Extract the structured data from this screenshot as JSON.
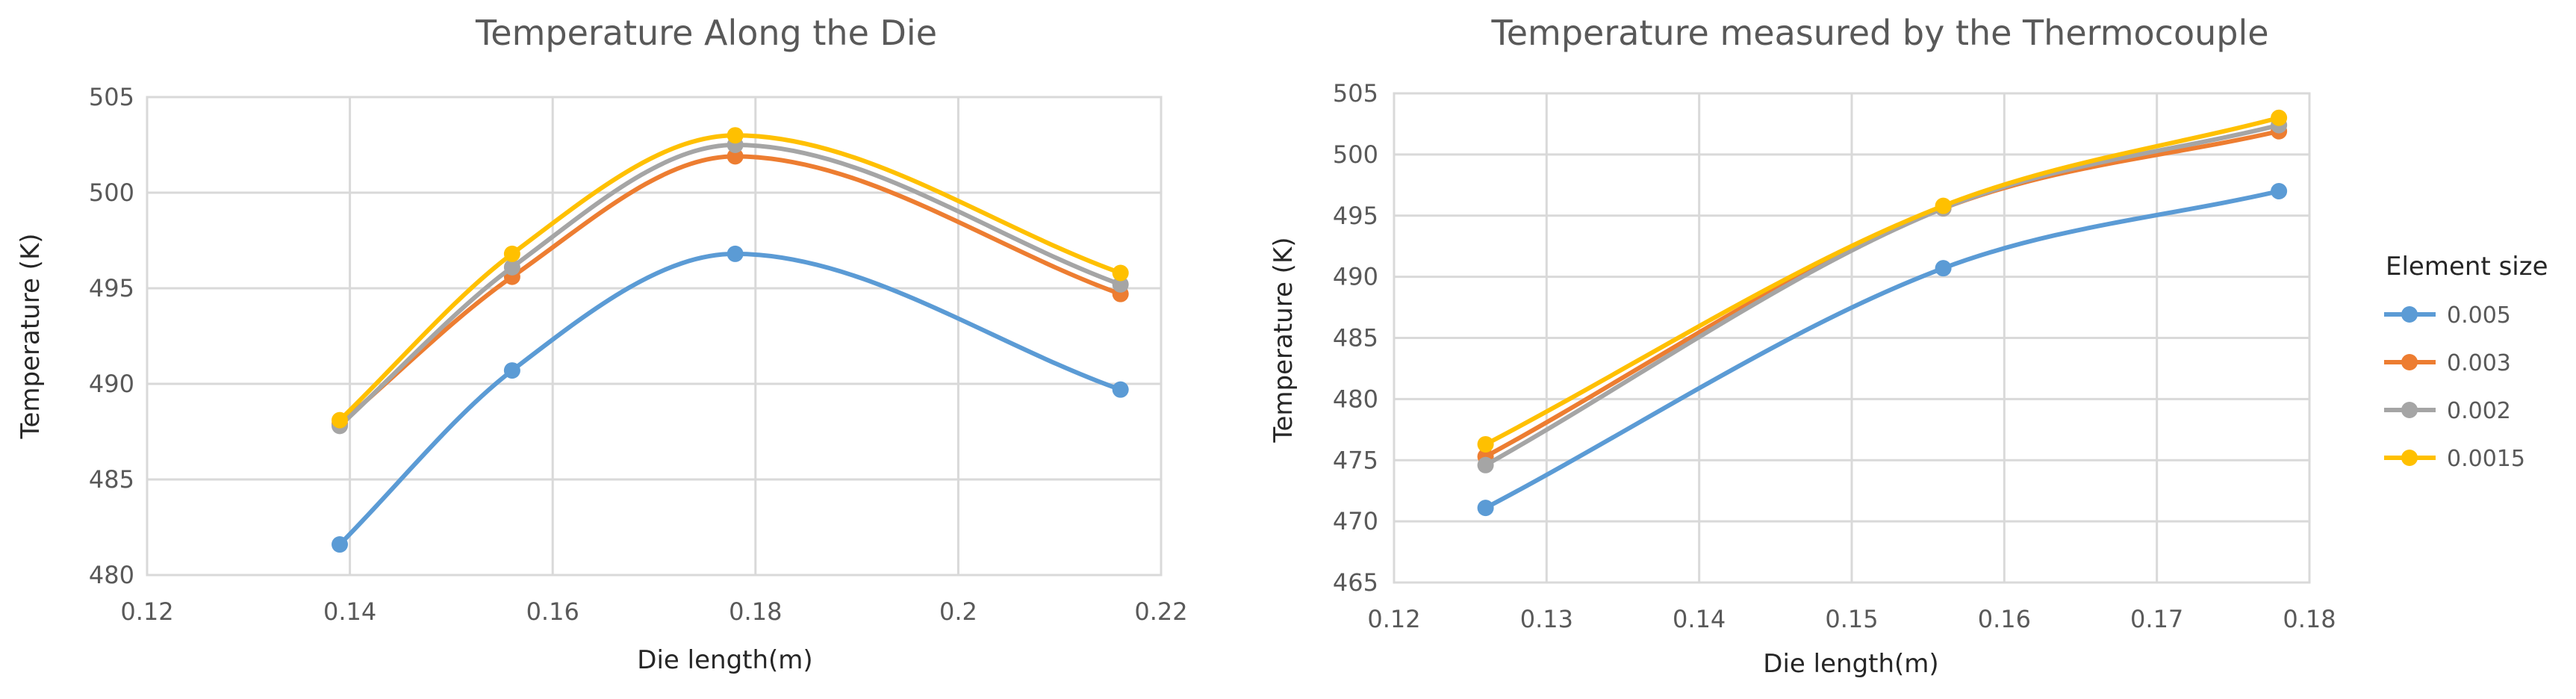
{
  "chart_data": [
    {
      "type": "line",
      "title": "Temperature  Along the Die",
      "xlabel": "Die length(m)",
      "ylabel": "Temperature (K)",
      "xlim": [
        0.12,
        0.22
      ],
      "ylim": [
        480,
        505
      ],
      "xticks": [
        0.12,
        0.14,
        0.16,
        0.18,
        0.2,
        0.22
      ],
      "xtick_labels": [
        "0.12",
        "0.14",
        "0.16",
        "0.18",
        "0.2",
        "0.22"
      ],
      "yticks": [
        480,
        485,
        490,
        495,
        500,
        505
      ],
      "ytick_labels": [
        "480",
        "485",
        "490",
        "495",
        "500",
        "505"
      ],
      "grid": true,
      "x": [
        0.139,
        0.156,
        0.178,
        0.216
      ],
      "series": [
        {
          "name": "0.005",
          "values": [
            481.6,
            490.7,
            496.8,
            489.7
          ]
        },
        {
          "name": "0.003",
          "values": [
            487.9,
            495.6,
            501.9,
            494.7
          ]
        },
        {
          "name": "0.002",
          "values": [
            487.8,
            496.1,
            502.5,
            495.2
          ]
        },
        {
          "name": "0.0015",
          "values": [
            488.1,
            496.8,
            503.0,
            495.8
          ]
        }
      ]
    },
    {
      "type": "line",
      "title": "Temperature  measured by the Thermocouple",
      "xlabel": "Die length(m)",
      "ylabel": "Temperature (K)",
      "xlim": [
        0.12,
        0.18
      ],
      "ylim": [
        465,
        505
      ],
      "xticks": [
        0.12,
        0.13,
        0.14,
        0.15,
        0.16,
        0.17,
        0.18
      ],
      "xtick_labels": [
        "0.12",
        "0.13",
        "0.14",
        "0.15",
        "0.16",
        "0.17",
        "0.18"
      ],
      "yticks": [
        465,
        470,
        475,
        480,
        485,
        490,
        495,
        500,
        505
      ],
      "ytick_labels": [
        "465",
        "470",
        "475",
        "480",
        "485",
        "490",
        "495",
        "500",
        "505"
      ],
      "grid": true,
      "x": [
        0.126,
        0.156,
        0.178
      ],
      "series": [
        {
          "name": "0.005",
          "values": [
            471.1,
            490.7,
            497.0
          ]
        },
        {
          "name": "0.003",
          "values": [
            475.3,
            495.6,
            501.9
          ]
        },
        {
          "name": "0.002",
          "values": [
            474.6,
            495.6,
            502.4
          ]
        },
        {
          "name": "0.0015",
          "values": [
            476.3,
            495.8,
            503.0
          ]
        }
      ]
    }
  ],
  "legend": {
    "title": "Element size",
    "placement": "right",
    "entries": [
      "0.005",
      "0.003",
      "0.002",
      "0.0015"
    ]
  },
  "colors": {
    "0.005": "#5B9BD5",
    "0.003": "#ED7D31",
    "0.002": "#A5A5A5",
    "0.0015": "#FFC000"
  }
}
